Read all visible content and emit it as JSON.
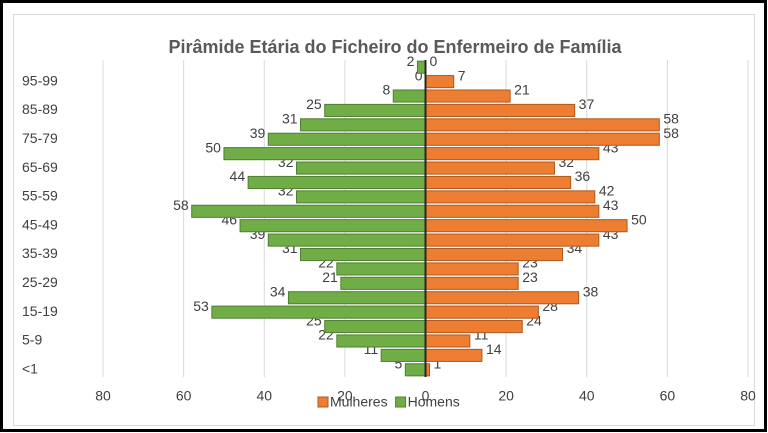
{
  "chart_data": {
    "type": "pyramid",
    "title": "Pirâmide Etária do Ficheiro do Enfermeiro de Família",
    "categories": [
      "<1",
      null,
      "5-9",
      null,
      "15-19",
      null,
      "25-29",
      null,
      "35-39",
      null,
      "45-49",
      null,
      "55-59",
      null,
      "65-69",
      null,
      "75-79",
      null,
      "85-89",
      null,
      "95-99",
      null
    ],
    "series": [
      {
        "name": "Mulheres",
        "color": "#ed7d31",
        "values": [
          1,
          14,
          11,
          24,
          28,
          38,
          23,
          23,
          34,
          43,
          50,
          43,
          42,
          36,
          32,
          43,
          58,
          58,
          37,
          21,
          7,
          0
        ]
      },
      {
        "name": "Homens",
        "color": "#70ad47",
        "values": [
          -5,
          -11,
          -22,
          -25,
          -53,
          -34,
          -21,
          -22,
          -31,
          -39,
          -46,
          -58,
          -32,
          -44,
          -32,
          -50,
          -39,
          -31,
          -25,
          -8,
          0,
          -2
        ],
        "value_labels": [
          "5",
          "11",
          "22",
          "25",
          "53",
          "34",
          "21",
          "22",
          "31",
          "39",
          "46",
          "58",
          "32",
          "44",
          "32",
          "50",
          "39",
          "31",
          "25",
          "8",
          "0",
          "2"
        ]
      }
    ],
    "xlim": [
      -80,
      80
    ],
    "xticks": [
      {
        "value": -80,
        "label": "80"
      },
      {
        "value": -60,
        "label": "60"
      },
      {
        "value": -40,
        "label": "40"
      },
      {
        "value": -20,
        "label": "20"
      },
      0,
      20,
      40,
      60,
      80
    ],
    "grid": true,
    "legend": "bottom"
  }
}
